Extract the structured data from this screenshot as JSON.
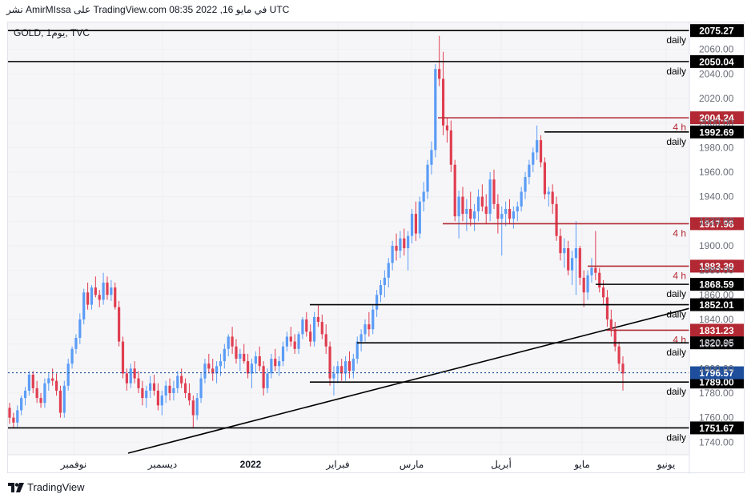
{
  "header": {
    "caption": "نشر AmirMIssa على TradingView.com في مايو 16, 2022 08:35 UTC"
  },
  "footer": {
    "brand": "TradingView"
  },
  "chart_data": {
    "type": "candlestick",
    "symbol_legend": "GOLD, 1يوم, TVC",
    "y_axis": {
      "min": 1735,
      "max": 2078,
      "ticks": [
        1740,
        1760,
        1780,
        1800,
        1820,
        1840,
        1860,
        1880,
        1900,
        1920,
        1940,
        1960,
        1980,
        2000,
        2020,
        2040,
        2060
      ]
    },
    "x_axis_labels": [
      "نوفمبر",
      "ديسمبر",
      "2022",
      "فبراير",
      "مارس",
      "أبريل",
      "مايو",
      "يونيو"
    ],
    "colors": {
      "up": "#5b9cf6",
      "down": "#e03e51",
      "support": "#000000",
      "resistance": "#b22833",
      "current": "#1e4e9c",
      "grid": "#eeeff3"
    },
    "current_price": {
      "value": 1796.57,
      "label": "1796.57"
    },
    "levels": [
      {
        "value": 2075.27,
        "label": "2075.27",
        "tf": "daily",
        "color": "black"
      },
      {
        "value": 2050.04,
        "label": "2050.04",
        "tf": "daily",
        "color": "black"
      },
      {
        "value": 2004.24,
        "label": "2004.24",
        "tf": "4 h",
        "color": "red"
      },
      {
        "value": 1992.69,
        "label": "1992.69",
        "tf": "daily",
        "color": "black"
      },
      {
        "value": 1917.98,
        "label": "1917.98",
        "tf": "4 h",
        "color": "red"
      },
      {
        "value": 1883.39,
        "label": "1883.39",
        "tf": "4 h",
        "color": "red"
      },
      {
        "value": 1868.59,
        "label": "1868.59",
        "tf": "daily",
        "color": "black"
      },
      {
        "value": 1852.01,
        "label": "1852.01",
        "tf": "daily",
        "color": "black"
      },
      {
        "value": 1831.23,
        "label": "1831.23",
        "tf": "4 h",
        "color": "red"
      },
      {
        "value": 1820.95,
        "label": "1820.95",
        "tf": "daily",
        "color": "black"
      },
      {
        "value": 1789.0,
        "label": "1789.00",
        "tf": "daily",
        "color": "black"
      },
      {
        "value": 1751.67,
        "label": "1751.67",
        "tf": "daily",
        "color": "black"
      }
    ],
    "candles": [
      [
        1768,
        1772,
        1755,
        1760
      ],
      [
        1760,
        1764,
        1752,
        1756
      ],
      [
        1756,
        1770,
        1752,
        1766
      ],
      [
        1766,
        1778,
        1762,
        1776
      ],
      [
        1776,
        1785,
        1770,
        1782
      ],
      [
        1782,
        1798,
        1778,
        1795
      ],
      [
        1795,
        1798,
        1780,
        1784
      ],
      [
        1784,
        1790,
        1772,
        1776
      ],
      [
        1776,
        1780,
        1768,
        1772
      ],
      [
        1772,
        1792,
        1768,
        1788
      ],
      [
        1788,
        1796,
        1782,
        1792
      ],
      [
        1792,
        1800,
        1786,
        1790
      ],
      [
        1790,
        1796,
        1778,
        1782
      ],
      [
        1782,
        1786,
        1760,
        1764
      ],
      [
        1764,
        1790,
        1760,
        1786
      ],
      [
        1786,
        1808,
        1782,
        1804
      ],
      [
        1804,
        1818,
        1800,
        1816
      ],
      [
        1816,
        1828,
        1812,
        1825
      ],
      [
        1825,
        1845,
        1820,
        1840
      ],
      [
        1840,
        1865,
        1836,
        1862
      ],
      [
        1862,
        1870,
        1848,
        1852
      ],
      [
        1852,
        1868,
        1848,
        1866
      ],
      [
        1866,
        1875,
        1858,
        1860
      ],
      [
        1860,
        1864,
        1850,
        1856
      ],
      [
        1856,
        1878,
        1852,
        1870
      ],
      [
        1870,
        1875,
        1856,
        1860
      ],
      [
        1860,
        1872,
        1855,
        1866
      ],
      [
        1866,
        1870,
        1848,
        1850
      ],
      [
        1850,
        1855,
        1818,
        1822
      ],
      [
        1822,
        1826,
        1792,
        1796
      ],
      [
        1796,
        1800,
        1782,
        1788
      ],
      [
        1788,
        1804,
        1784,
        1800
      ],
      [
        1800,
        1806,
        1788,
        1792
      ],
      [
        1792,
        1798,
        1780,
        1784
      ],
      [
        1784,
        1790,
        1770,
        1776
      ],
      [
        1776,
        1786,
        1768,
        1782
      ],
      [
        1782,
        1794,
        1776,
        1788
      ],
      [
        1788,
        1795,
        1778,
        1782
      ],
      [
        1782,
        1788,
        1766,
        1770
      ],
      [
        1770,
        1782,
        1762,
        1778
      ],
      [
        1778,
        1790,
        1772,
        1786
      ],
      [
        1786,
        1792,
        1774,
        1780
      ],
      [
        1780,
        1790,
        1774,
        1784
      ],
      [
        1784,
        1798,
        1780,
        1794
      ],
      [
        1794,
        1800,
        1784,
        1788
      ],
      [
        1788,
        1792,
        1776,
        1780
      ],
      [
        1780,
        1788,
        1770,
        1774
      ],
      [
        1774,
        1778,
        1752,
        1762
      ],
      [
        1762,
        1780,
        1758,
        1776
      ],
      [
        1776,
        1796,
        1772,
        1792
      ],
      [
        1792,
        1808,
        1788,
        1804
      ],
      [
        1804,
        1812,
        1796,
        1800
      ],
      [
        1800,
        1808,
        1790,
        1796
      ],
      [
        1796,
        1806,
        1788,
        1802
      ],
      [
        1802,
        1812,
        1794,
        1806
      ],
      [
        1806,
        1820,
        1800,
        1816
      ],
      [
        1816,
        1828,
        1810,
        1826
      ],
      [
        1826,
        1834,
        1812,
        1818
      ],
      [
        1818,
        1824,
        1804,
        1808
      ],
      [
        1808,
        1816,
        1798,
        1812
      ],
      [
        1812,
        1820,
        1804,
        1806
      ],
      [
        1806,
        1812,
        1792,
        1796
      ],
      [
        1796,
        1808,
        1784,
        1804
      ],
      [
        1804,
        1814,
        1796,
        1810
      ],
      [
        1810,
        1818,
        1798,
        1802
      ],
      [
        1802,
        1806,
        1778,
        1784
      ],
      [
        1784,
        1800,
        1780,
        1796
      ],
      [
        1796,
        1812,
        1792,
        1808
      ],
      [
        1808,
        1816,
        1798,
        1802
      ],
      [
        1802,
        1810,
        1794,
        1806
      ],
      [
        1806,
        1822,
        1802,
        1818
      ],
      [
        1818,
        1830,
        1814,
        1826
      ],
      [
        1826,
        1834,
        1818,
        1822
      ],
      [
        1822,
        1828,
        1812,
        1816
      ],
      [
        1816,
        1830,
        1812,
        1828
      ],
      [
        1828,
        1842,
        1824,
        1840
      ],
      [
        1840,
        1846,
        1826,
        1830
      ],
      [
        1830,
        1836,
        1818,
        1822
      ],
      [
        1822,
        1846,
        1818,
        1842
      ],
      [
        1842,
        1852,
        1834,
        1838
      ],
      [
        1838,
        1844,
        1824,
        1828
      ],
      [
        1828,
        1836,
        1812,
        1818
      ],
      [
        1818,
        1822,
        1786,
        1792
      ],
      [
        1792,
        1802,
        1778,
        1796
      ],
      [
        1796,
        1806,
        1788,
        1802
      ],
      [
        1802,
        1808,
        1790,
        1796
      ],
      [
        1796,
        1810,
        1790,
        1806
      ],
      [
        1806,
        1814,
        1792,
        1798
      ],
      [
        1798,
        1812,
        1792,
        1808
      ],
      [
        1808,
        1826,
        1804,
        1822
      ],
      [
        1822,
        1832,
        1814,
        1828
      ],
      [
        1828,
        1840,
        1822,
        1836
      ],
      [
        1836,
        1846,
        1826,
        1832
      ],
      [
        1832,
        1852,
        1828,
        1848
      ],
      [
        1848,
        1864,
        1842,
        1860
      ],
      [
        1860,
        1872,
        1854,
        1868
      ],
      [
        1868,
        1880,
        1858,
        1874
      ],
      [
        1874,
        1890,
        1866,
        1886
      ],
      [
        1886,
        1904,
        1880,
        1900
      ],
      [
        1900,
        1910,
        1888,
        1896
      ],
      [
        1896,
        1912,
        1890,
        1906
      ],
      [
        1906,
        1914,
        1892,
        1898
      ],
      [
        1898,
        1912,
        1880,
        1908
      ],
      [
        1908,
        1930,
        1902,
        1926
      ],
      [
        1926,
        1936,
        1904,
        1910
      ],
      [
        1910,
        1940,
        1906,
        1936
      ],
      [
        1936,
        1952,
        1928,
        1944
      ],
      [
        1944,
        1970,
        1938,
        1966
      ],
      [
        1966,
        1985,
        1958,
        1978
      ],
      [
        1978,
        2048,
        1972,
        2044
      ],
      [
        2044,
        2071,
        2030,
        2036
      ],
      [
        2036,
        2058,
        1990,
        1998
      ],
      [
        1998,
        2004,
        1984,
        1994
      ],
      [
        1994,
        2002,
        1960,
        1966
      ],
      [
        1966,
        1970,
        1920,
        1924
      ],
      [
        1924,
        1945,
        1906,
        1940
      ],
      [
        1940,
        1948,
        1920,
        1926
      ],
      [
        1926,
        1938,
        1912,
        1930
      ],
      [
        1930,
        1944,
        1916,
        1922
      ],
      [
        1922,
        1934,
        1912,
        1928
      ],
      [
        1928,
        1946,
        1920,
        1940
      ],
      [
        1940,
        1950,
        1928,
        1932
      ],
      [
        1932,
        1942,
        1918,
        1926
      ],
      [
        1926,
        1960,
        1920,
        1954
      ],
      [
        1954,
        1962,
        1930,
        1934
      ],
      [
        1934,
        1942,
        1910,
        1922
      ],
      [
        1922,
        1932,
        1892,
        1926
      ],
      [
        1926,
        1936,
        1916,
        1930
      ],
      [
        1930,
        1938,
        1918,
        1922
      ],
      [
        1922,
        1932,
        1914,
        1928
      ],
      [
        1928,
        1936,
        1920,
        1932
      ],
      [
        1932,
        1948,
        1928,
        1944
      ],
      [
        1944,
        1960,
        1938,
        1956
      ],
      [
        1956,
        1970,
        1950,
        1966
      ],
      [
        1966,
        1980,
        1960,
        1976
      ],
      [
        1976,
        1998,
        1970,
        1986
      ],
      [
        1986,
        1990,
        1964,
        1968
      ],
      [
        1968,
        1972,
        1938,
        1942
      ],
      [
        1942,
        1948,
        1932,
        1944
      ],
      [
        1944,
        1950,
        1926,
        1934
      ],
      [
        1934,
        1940,
        1904,
        1908
      ],
      [
        1908,
        1914,
        1888,
        1894
      ],
      [
        1894,
        1906,
        1882,
        1898
      ],
      [
        1898,
        1904,
        1876,
        1880
      ],
      [
        1880,
        1896,
        1868,
        1890
      ],
      [
        1890,
        1920,
        1860,
        1898
      ],
      [
        1898,
        1900,
        1868,
        1874
      ],
      [
        1874,
        1880,
        1850,
        1862
      ],
      [
        1862,
        1880,
        1856,
        1876
      ],
      [
        1876,
        1890,
        1870,
        1882
      ],
      [
        1882,
        1912,
        1872,
        1878
      ],
      [
        1878,
        1882,
        1862,
        1866
      ],
      [
        1866,
        1872,
        1852,
        1858
      ],
      [
        1858,
        1864,
        1834,
        1840
      ],
      [
        1840,
        1848,
        1826,
        1832
      ],
      [
        1832,
        1838,
        1814,
        1818
      ],
      [
        1818,
        1822,
        1798,
        1804
      ],
      [
        1804,
        1810,
        1782,
        1796
      ]
    ]
  }
}
